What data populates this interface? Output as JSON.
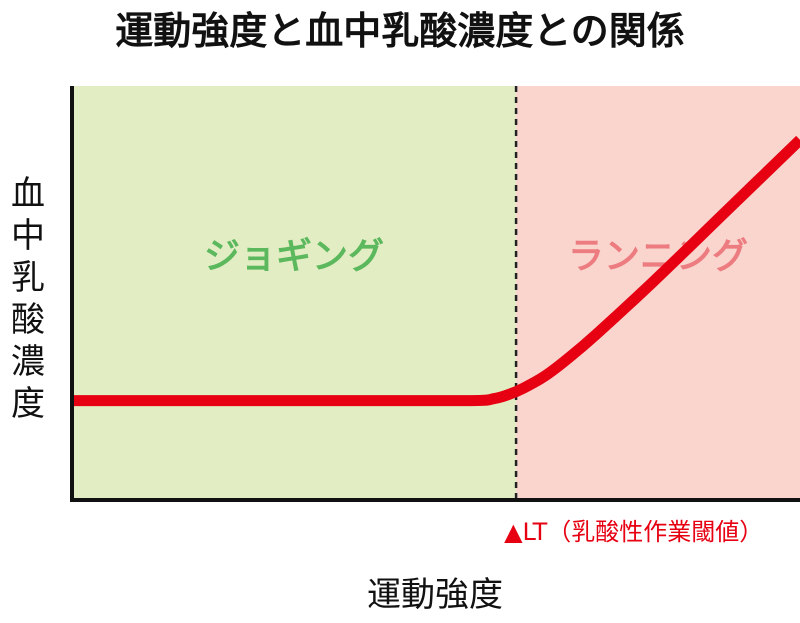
{
  "chart_data": {
    "type": "line",
    "title": "運動強度と血中乳酸濃度との関係",
    "xlabel": "運動強度",
    "ylabel": "血中乳酸濃度",
    "xlim": [
      0,
      1
    ],
    "ylim": [
      0,
      1
    ],
    "grid": false,
    "series": [
      {
        "color": "#e60012",
        "x": [
          0.0,
          0.2,
          0.4,
          0.55,
          0.58,
          0.6,
          0.62,
          0.65,
          0.68,
          0.72,
          0.8,
          0.9,
          1.0
        ],
        "y": [
          0.24,
          0.24,
          0.24,
          0.24,
          0.245,
          0.255,
          0.27,
          0.3,
          0.34,
          0.4,
          0.53,
          0.7,
          0.87
        ]
      }
    ],
    "regions": [
      {
        "label": "ジョギング",
        "from": 0.0,
        "to": 0.61,
        "fill": "#e2edc4",
        "text_color": "#5cb85c"
      },
      {
        "label": "ランニング",
        "from": 0.61,
        "to": 1.0,
        "fill": "#f9d5ce",
        "text_color": "#ec7c80"
      }
    ],
    "threshold": {
      "x": 0.61,
      "label": "▲LT（乳酸性作業閾値）",
      "color": "#e60012"
    }
  }
}
